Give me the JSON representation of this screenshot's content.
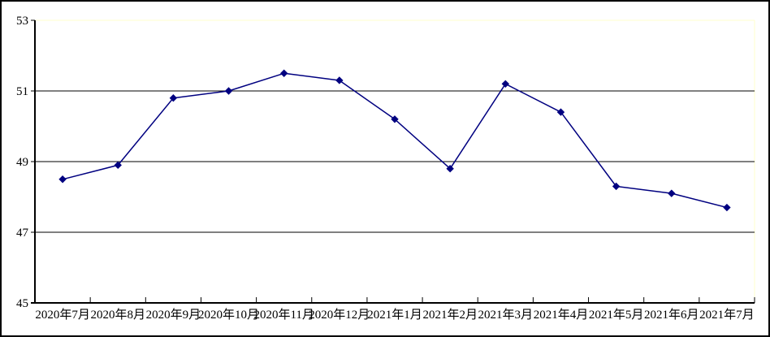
{
  "chart_data": {
    "type": "line",
    "title": "",
    "xlabel": "",
    "ylabel": "",
    "categories": [
      "2020年7月",
      "2020年8月",
      "2020年9月",
      "2020年10月",
      "2020年11月",
      "2020年12月",
      "2021年1月",
      "2021年2月",
      "2021年3月",
      "2021年4月",
      "2021年5月",
      "2021年6月",
      "2021年7月"
    ],
    "series": [
      {
        "name": "value",
        "values": [
          48.5,
          48.9,
          50.8,
          51.0,
          51.5,
          51.3,
          50.2,
          48.8,
          51.2,
          50.4,
          48.3,
          48.1,
          47.7
        ]
      }
    ],
    "ylim": [
      45,
      53
    ],
    "y_tick_step": 2,
    "y_tick_labels": [
      "45",
      "47",
      "49",
      "51",
      "53"
    ],
    "grid": "horizontal",
    "legend": "none",
    "colors": {
      "line": "#000080",
      "marker": "#000080",
      "gridline": "#000000",
      "axis": "#000000",
      "plot_top_right_border": "#FFFFCC",
      "outer_border": "#000000",
      "background": "#FFFFFF",
      "label_text": "#000000"
    },
    "marker": "diamond"
  }
}
